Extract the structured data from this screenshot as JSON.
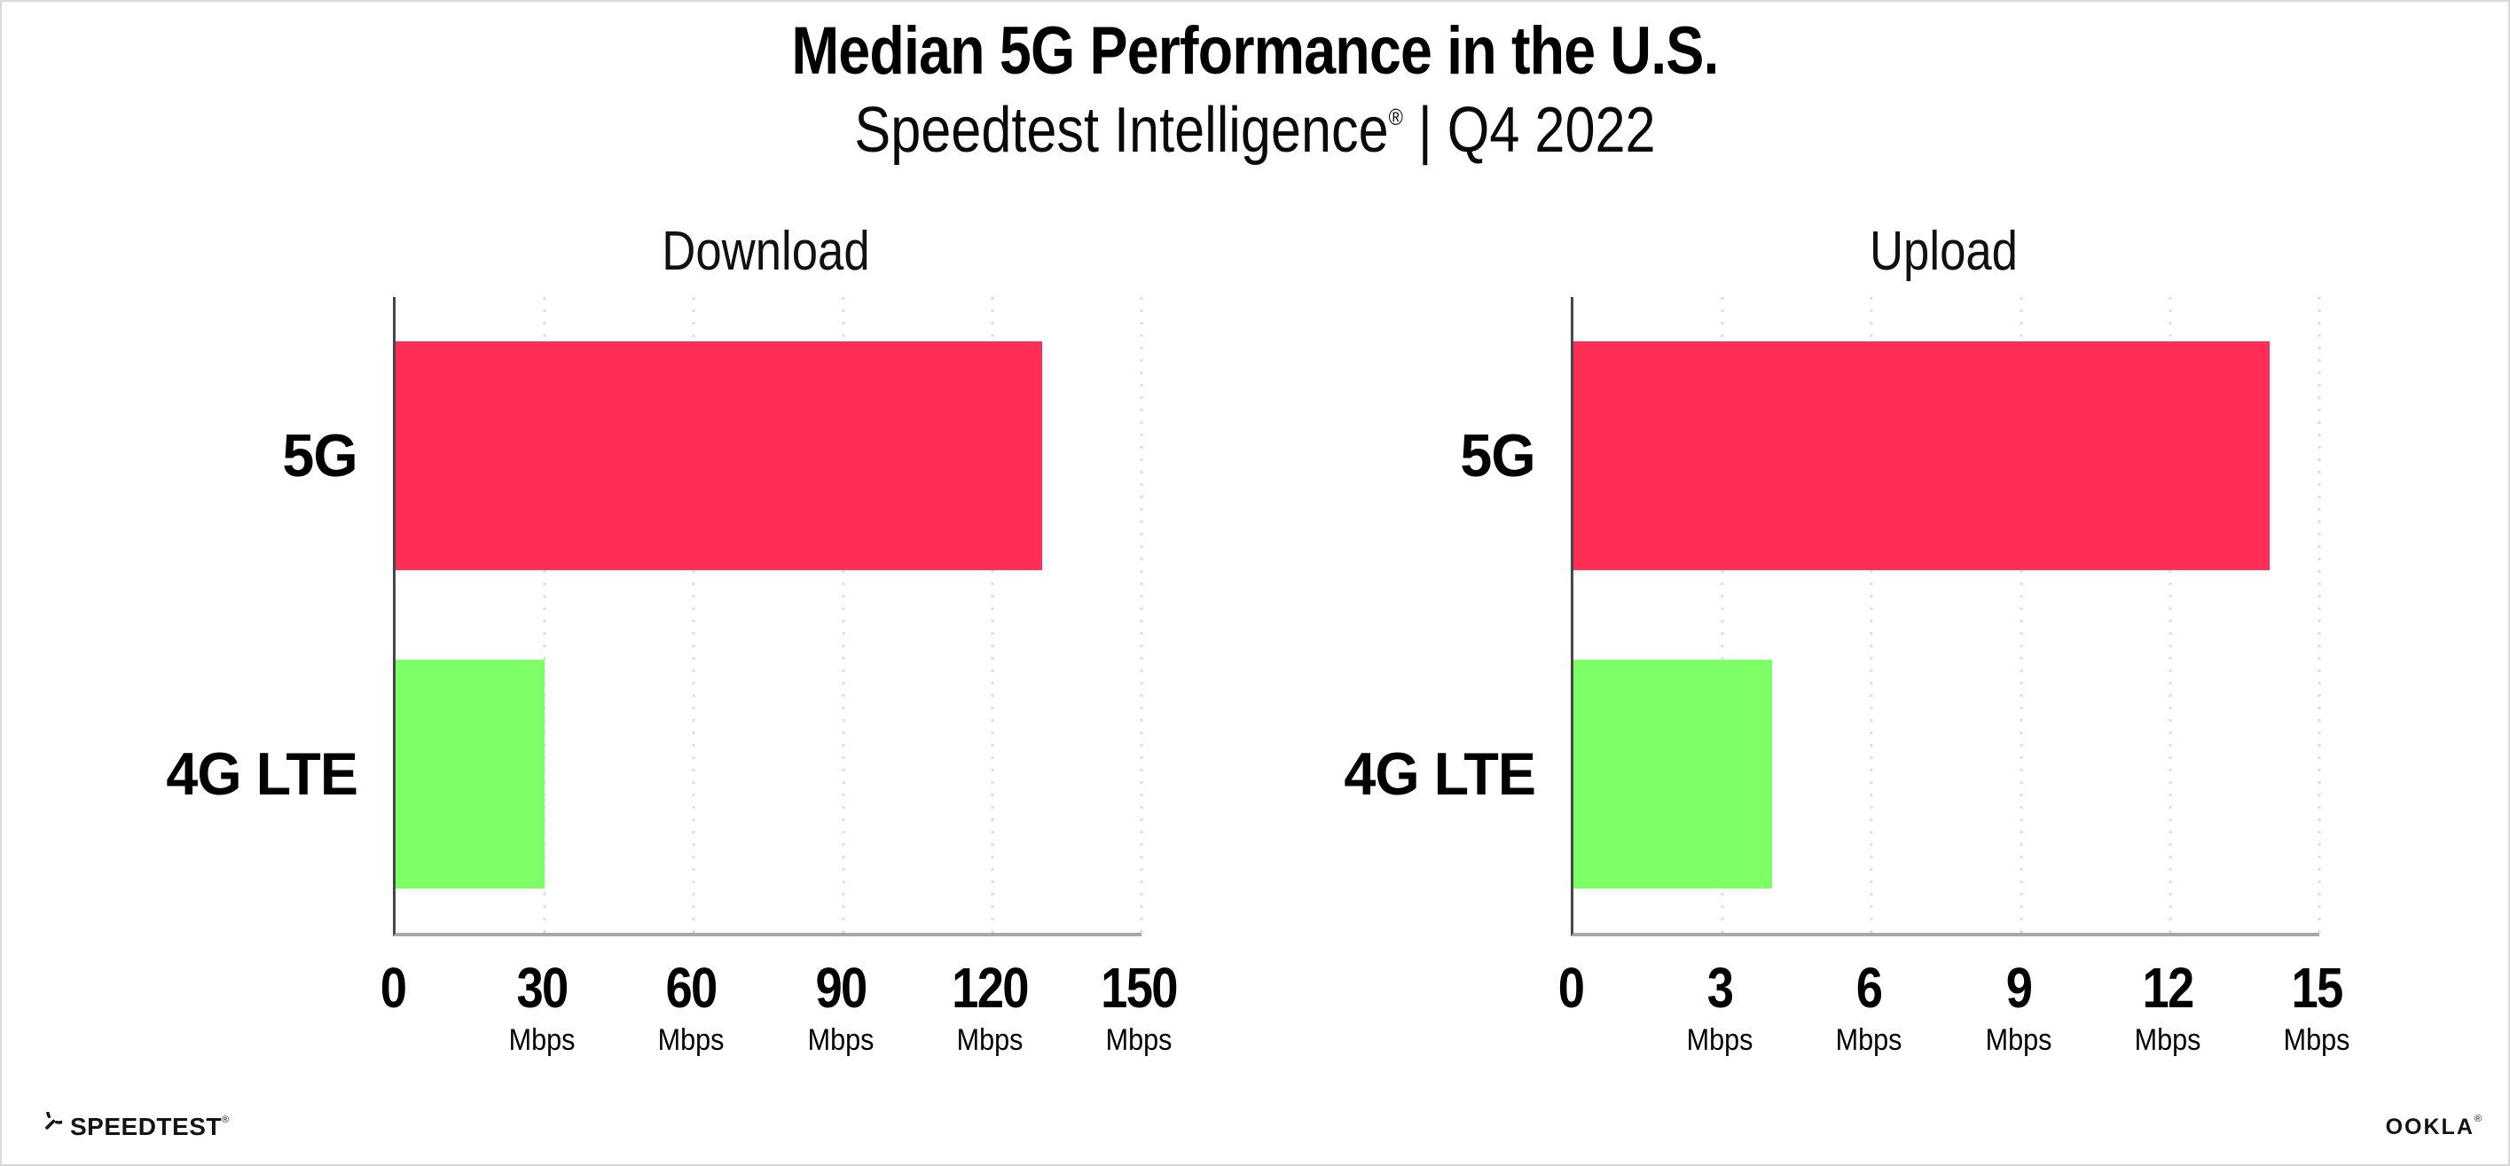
{
  "header": {
    "title": "Median 5G Performance in the U.S.",
    "subtitle_brand": "Speedtest Intelligence",
    "subtitle_reg": "®",
    "subtitle_sep": " | ",
    "subtitle_period": "Q4 2022"
  },
  "footer": {
    "speedtest_logo_text": "SPEEDTEST",
    "speedtest_mark": "®",
    "ookla_logo_text": "OOKLA",
    "ookla_mark": "®"
  },
  "colors": {
    "bar_5g": "#ff2e56",
    "bar_4g_lte": "#7dff66",
    "gridline": "#dcdce6",
    "axis_left": "#474747",
    "axis_bottom": "#a8a8a8",
    "text": "#000000"
  },
  "chart_data": [
    {
      "type": "bar",
      "orientation": "horizontal",
      "title": "Download",
      "categories": [
        "5G",
        "4G LTE"
      ],
      "values": [
        130,
        30
      ],
      "unit": "Mbps",
      "xlim": [
        0,
        150
      ],
      "xticks": [
        0,
        30,
        60,
        90,
        120,
        150
      ],
      "grid": "dotted-vertical",
      "legend": "none",
      "bar_colors": [
        "#ff2e56",
        "#7dff66"
      ]
    },
    {
      "type": "bar",
      "orientation": "horizontal",
      "title": "Upload",
      "categories": [
        "5G",
        "4G LTE"
      ],
      "values": [
        14,
        4
      ],
      "unit": "Mbps",
      "xlim": [
        0,
        15
      ],
      "xticks": [
        0,
        3,
        6,
        9,
        12,
        15
      ],
      "grid": "dotted-vertical",
      "legend": "none",
      "bar_colors": [
        "#ff2e56",
        "#7dff66"
      ]
    }
  ]
}
